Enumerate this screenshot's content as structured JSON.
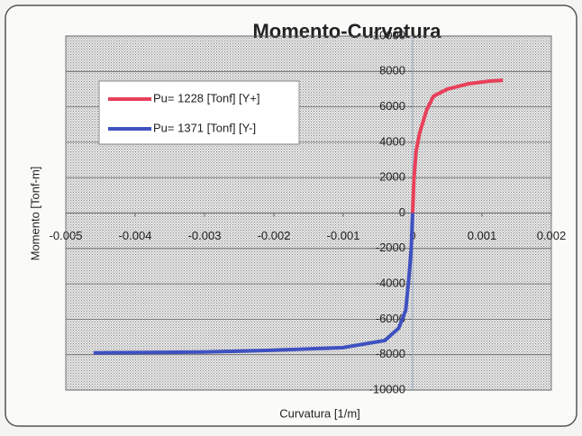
{
  "chart_data": {
    "type": "line",
    "title": "Momento-Curvatura",
    "xlabel": "Curvatura [1/m]",
    "ylabel": "Momento [Tonf-m]",
    "xlim": [
      -0.005,
      0.002
    ],
    "xticks": [
      -0.005,
      -0.004,
      -0.003,
      -0.002,
      -0.001,
      0,
      0.001,
      0.002
    ],
    "ylim": [
      -10000,
      10000
    ],
    "yticks": [
      -10000,
      -8000,
      -6000,
      -4000,
      -2000,
      0,
      2000,
      4000,
      6000,
      8000,
      10000
    ],
    "grid": true,
    "legend": "upper left",
    "series": [
      {
        "name": "Pu= 1228 [Tonf] [Y+]",
        "color": "#e8405a",
        "x": [
          0,
          2e-05,
          5e-05,
          0.0001,
          0.0002,
          0.0003,
          0.0005,
          0.0008,
          0.0011,
          0.0013
        ],
        "values": [
          0,
          2000,
          3500,
          4500,
          5800,
          6600,
          7000,
          7300,
          7450,
          7500
        ]
      },
      {
        "name": "Pu= 1371 [Tonf] [Y-]",
        "color": "#3f51c0",
        "x": [
          0,
          -2e-05,
          -5e-05,
          -0.0001,
          -0.0002,
          -0.0004,
          -0.001,
          -0.002,
          -0.003,
          -0.004,
          -0.0046
        ],
        "values": [
          0,
          -2000,
          -3500,
          -5500,
          -6500,
          -7200,
          -7600,
          -7750,
          -7850,
          -7880,
          -7900
        ]
      }
    ]
  }
}
